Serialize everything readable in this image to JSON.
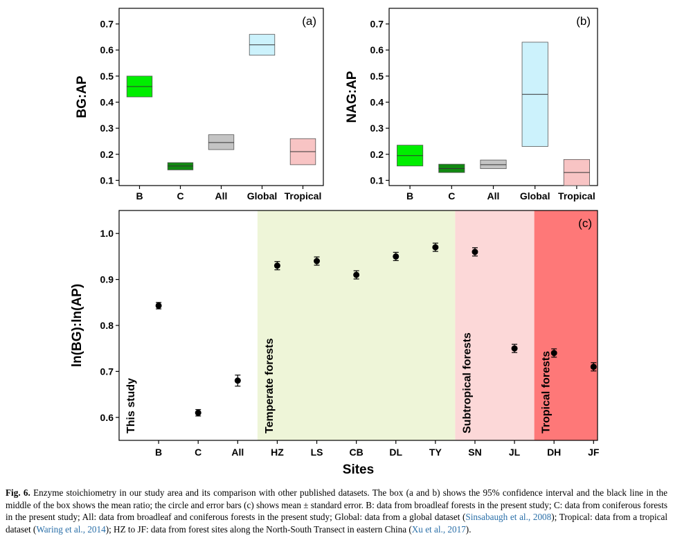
{
  "chart_data": [
    {
      "id": "a",
      "type": "box",
      "panel_label": "(a)",
      "ylabel": "BG:AP",
      "ylim": [
        0.08,
        0.76
      ],
      "yticks": [
        0.1,
        0.2,
        0.3,
        0.4,
        0.5,
        0.6,
        0.7
      ],
      "categories": [
        "B",
        "C",
        "All",
        "Global",
        "Tropical"
      ],
      "boxes": [
        {
          "low": 0.42,
          "mean": 0.46,
          "high": 0.5,
          "color": "#00ee00"
        },
        {
          "low": 0.14,
          "mean": 0.155,
          "high": 0.168,
          "color": "#118811"
        },
        {
          "low": 0.218,
          "mean": 0.245,
          "high": 0.275,
          "color": "#c4c4c4"
        },
        {
          "low": 0.58,
          "mean": 0.62,
          "high": 0.66,
          "color": "#ccf2fc"
        },
        {
          "low": 0.16,
          "mean": 0.21,
          "high": 0.26,
          "color": "#f8c4c4"
        }
      ]
    },
    {
      "id": "b",
      "type": "box",
      "panel_label": "(b)",
      "ylabel": "NAG:AP",
      "ylim": [
        0.08,
        0.76
      ],
      "yticks": [
        0.1,
        0.2,
        0.3,
        0.4,
        0.5,
        0.6,
        0.7
      ],
      "categories": [
        "B",
        "C",
        "All",
        "Global",
        "Tropical"
      ],
      "boxes": [
        {
          "low": 0.155,
          "mean": 0.195,
          "high": 0.235,
          "color": "#00ee00"
        },
        {
          "low": 0.13,
          "mean": 0.145,
          "high": 0.162,
          "color": "#118811"
        },
        {
          "low": 0.145,
          "mean": 0.16,
          "high": 0.178,
          "color": "#c4c4c4"
        },
        {
          "low": 0.23,
          "mean": 0.43,
          "high": 0.63,
          "color": "#ccf2fc"
        },
        {
          "low": 0.08,
          "mean": 0.13,
          "high": 0.18,
          "color": "#f8c4c4"
        }
      ]
    },
    {
      "id": "c",
      "type": "scatter",
      "panel_label": "(c)",
      "ylabel": "ln(BG):ln(AP)",
      "xlabel": "Sites",
      "ylim": [
        0.55,
        1.05
      ],
      "yticks": [
        0.6,
        0.7,
        0.8,
        0.9,
        1.0
      ],
      "categories": [
        "B",
        "C",
        "All",
        "HZ",
        "LS",
        "CB",
        "DL",
        "TY",
        "SN",
        "JL",
        "DH",
        "JF"
      ],
      "means": [
        0.843,
        0.61,
        0.68,
        0.93,
        0.94,
        0.91,
        0.95,
        0.97,
        0.96,
        0.75,
        0.74,
        0.71
      ],
      "se": [
        0.007,
        0.007,
        0.012,
        0.009,
        0.009,
        0.009,
        0.009,
        0.009,
        0.009,
        0.009,
        0.009,
        0.009
      ],
      "regions": [
        {
          "label": "This study",
          "from": 0,
          "to": 2,
          "color": "#ffffff"
        },
        {
          "label": "Temperate forests",
          "from": 3,
          "to": 7,
          "color": "#eef5d8"
        },
        {
          "label": "Subtropical forests",
          "from": 8,
          "to": 9,
          "color": "#fcd8d8"
        },
        {
          "label": "Tropical forests",
          "from": 10,
          "to": 11,
          "color": "#fe7878"
        }
      ]
    }
  ],
  "caption": {
    "label": "Fig. 6.",
    "text1": " Enzyme stoichiometry in our study area and its comparison with other published datasets. The box (a and b) shows the 95% confidence interval and the black line in the middle of the box shows the mean ratio; the circle and error bars (c) shows mean ± standard error. B: data from broadleaf forests in the present study; C: data from coniferous forests in the present study; All: data from broadleaf and coniferous forests in the present study; Global: data from a global dataset (",
    "ref1": "Sinsabaugh et al., 2008",
    "text2": "); Tropical: data from a tropical dataset (",
    "ref2": "Waring et al., 2014",
    "text3": "); HZ to JF: data from forest sites along the North-South Transect in eastern China (",
    "ref3": "Xu et al., 2017",
    "text4": ")."
  }
}
